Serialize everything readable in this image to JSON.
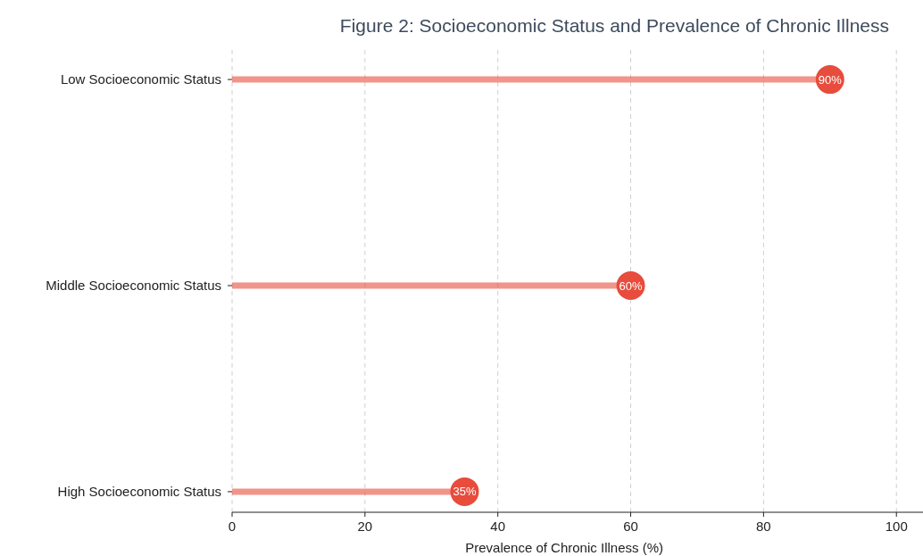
{
  "chart_data": {
    "type": "lollipop",
    "orientation": "horizontal",
    "title": "Figure 2: Socioeconomic Status and Prevalence of Chronic Illness",
    "xlabel": "Prevalence of Chronic Illness (%)",
    "categories": [
      "Low Socioeconomic Status",
      "Middle Socioeconomic Status",
      "High Socioeconomic Status"
    ],
    "series": [
      {
        "color": "#e74c3c",
        "values": [
          90,
          60,
          35
        ],
        "value_labels": [
          "90%",
          "60%",
          "35%"
        ]
      }
    ],
    "xlim": [
      0,
      104
    ],
    "xticks": [
      0,
      20,
      40,
      60,
      80,
      100
    ],
    "grid": "x",
    "marker": "circle"
  }
}
